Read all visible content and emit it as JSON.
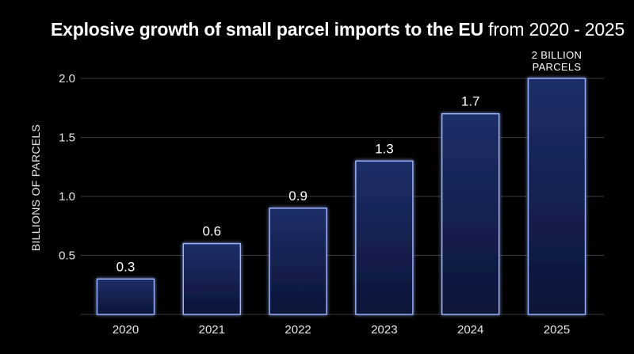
{
  "chart_data": {
    "type": "bar",
    "title_bold": "Explosive growth of small parcel imports to the EU",
    "title_light": "from 2020 - 2025",
    "ylabel": "BILLIONS OF PARCELS",
    "xlabel": "",
    "categories": [
      "2020",
      "2021",
      "2022",
      "2023",
      "2024",
      "2025"
    ],
    "values": [
      0.3,
      0.6,
      0.9,
      1.3,
      1.7,
      2.0
    ],
    "data_labels": [
      "0.3",
      "0.6",
      "0.9",
      "1.3",
      "1.7",
      ""
    ],
    "annotation": {
      "line1": "2 BILLION",
      "line2": "PARCELS"
    },
    "yticks": [
      "0.5",
      "1.0",
      "1.5",
      "2.0"
    ],
    "ylim": [
      0,
      2.0
    ],
    "grid": true,
    "colors": {
      "background": "#000000",
      "bar_fill_top": "#1e2e68",
      "bar_fill_bottom": "#0c1438",
      "bar_stroke": "#9fb4ff",
      "gridline": "#3a3a3a",
      "text": "#ffffff"
    }
  }
}
